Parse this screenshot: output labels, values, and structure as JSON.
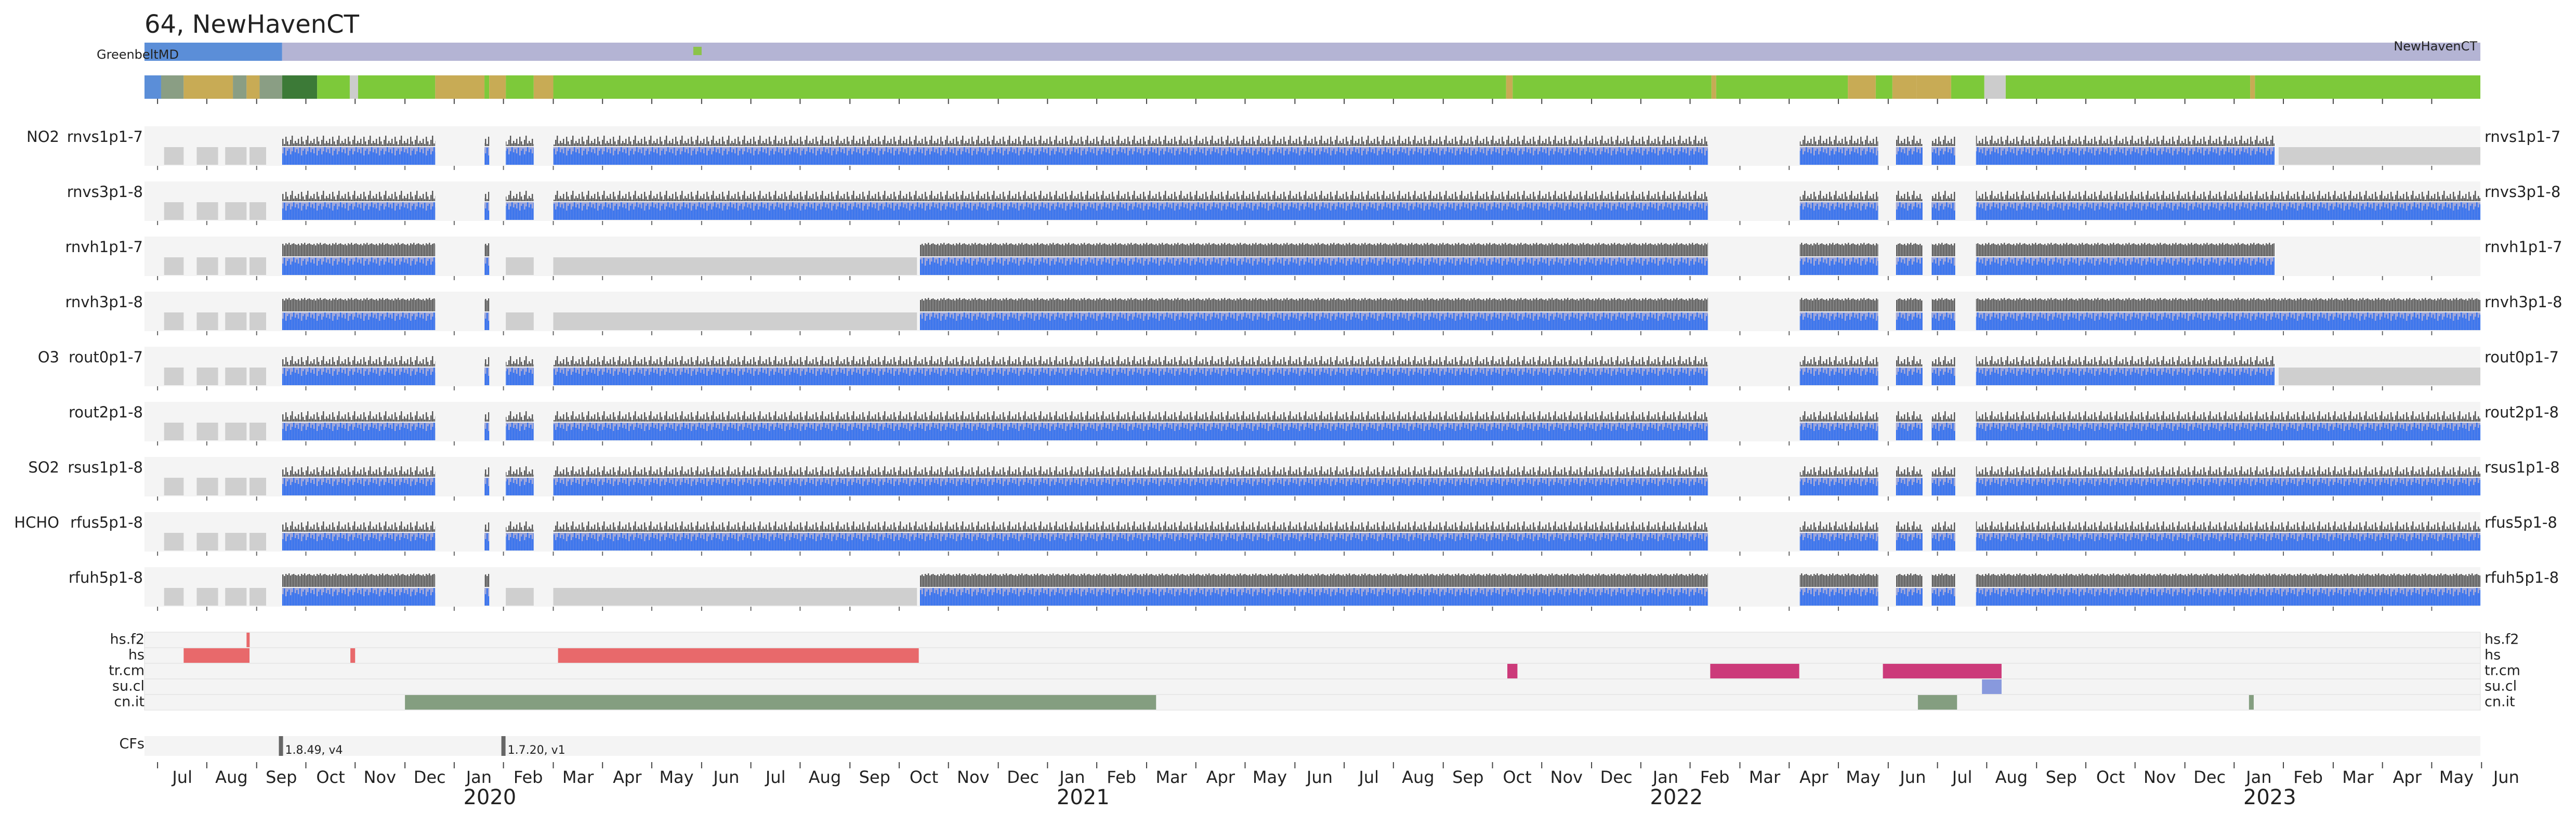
{
  "chart_data": {
    "type": "timeline",
    "title": "64, NewHavenCT",
    "xlim": [
      2019.478,
      2023.415
    ],
    "xticks": [
      {
        "value": 2019.5,
        "label": "Jul"
      },
      {
        "value": 2019.583,
        "label": "Aug"
      },
      {
        "value": 2019.667,
        "label": "Sep"
      },
      {
        "value": 2019.75,
        "label": "Oct"
      },
      {
        "value": 2019.833,
        "label": "Nov"
      },
      {
        "value": 2019.917,
        "label": "Dec"
      },
      {
        "value": 2020.0,
        "label": "Jan"
      },
      {
        "value": 2020.083,
        "label": "Feb"
      },
      {
        "value": 2020.167,
        "label": "Mar"
      },
      {
        "value": 2020.25,
        "label": "Apr"
      },
      {
        "value": 2020.333,
        "label": "May"
      },
      {
        "value": 2020.417,
        "label": "Jun"
      },
      {
        "value": 2020.5,
        "label": "Jul"
      },
      {
        "value": 2020.583,
        "label": "Aug"
      },
      {
        "value": 2020.667,
        "label": "Sep"
      },
      {
        "value": 2020.75,
        "label": "Oct"
      },
      {
        "value": 2020.833,
        "label": "Nov"
      },
      {
        "value": 2020.917,
        "label": "Dec"
      },
      {
        "value": 2021.0,
        "label": "Jan"
      },
      {
        "value": 2021.083,
        "label": "Feb"
      },
      {
        "value": 2021.167,
        "label": "Mar"
      },
      {
        "value": 2021.25,
        "label": "Apr"
      },
      {
        "value": 2021.333,
        "label": "May"
      },
      {
        "value": 2021.417,
        "label": "Jun"
      },
      {
        "value": 2021.5,
        "label": "Jul"
      },
      {
        "value": 2021.583,
        "label": "Aug"
      },
      {
        "value": 2021.667,
        "label": "Sep"
      },
      {
        "value": 2021.75,
        "label": "Oct"
      },
      {
        "value": 2021.833,
        "label": "Nov"
      },
      {
        "value": 2021.917,
        "label": "Dec"
      },
      {
        "value": 2022.0,
        "label": "Jan"
      },
      {
        "value": 2022.083,
        "label": "Feb"
      },
      {
        "value": 2022.167,
        "label": "Mar"
      },
      {
        "value": 2022.25,
        "label": "Apr"
      },
      {
        "value": 2022.333,
        "label": "May"
      },
      {
        "value": 2022.417,
        "label": "Jun"
      },
      {
        "value": 2022.5,
        "label": "Jul"
      },
      {
        "value": 2022.583,
        "label": "Aug"
      },
      {
        "value": 2022.667,
        "label": "Sep"
      },
      {
        "value": 2022.75,
        "label": "Oct"
      },
      {
        "value": 2022.833,
        "label": "Nov"
      },
      {
        "value": 2022.917,
        "label": "Dec"
      },
      {
        "value": 2023.0,
        "label": "Jan"
      },
      {
        "value": 2023.083,
        "label": "Feb"
      },
      {
        "value": 2023.167,
        "label": "Mar"
      },
      {
        "value": 2023.25,
        "label": "Apr"
      },
      {
        "value": 2023.333,
        "label": "May"
      },
      {
        "value": 2023.417,
        "label": "Jun"
      }
    ],
    "year_ticks": [
      2020,
      2021,
      2022,
      2023
    ],
    "locations": [
      {
        "name": "GreenbeltMD",
        "start": 2019.478,
        "end": 2019.71,
        "color": "#5b8ed8"
      },
      {
        "name": "NewHavenCT",
        "start": 2019.71,
        "end": 2023.415,
        "color": "#b4b4d4"
      }
    ],
    "location_marker": {
      "x": 2020.41,
      "color": "#8bc34a"
    },
    "status_band": [
      {
        "start": 2019.478,
        "end": 2019.506,
        "color": "#5b8ed8"
      },
      {
        "start": 2019.506,
        "end": 2019.544,
        "color": "#8a9e84"
      },
      {
        "start": 2019.544,
        "end": 2019.627,
        "color": "#c8ab55"
      },
      {
        "start": 2019.627,
        "end": 2019.65,
        "color": "#8a9e84"
      },
      {
        "start": 2019.65,
        "end": 2019.672,
        "color": "#c8ab55"
      },
      {
        "start": 2019.672,
        "end": 2019.71,
        "color": "#8a9e84"
      },
      {
        "start": 2019.71,
        "end": 2019.769,
        "color": "#3c7a37"
      },
      {
        "start": 2019.769,
        "end": 2019.824,
        "color": "#7dc93a"
      },
      {
        "start": 2019.824,
        "end": 2019.838,
        "color": "#cccccc"
      },
      {
        "start": 2019.838,
        "end": 2019.968,
        "color": "#7dc93a"
      },
      {
        "start": 2019.968,
        "end": 2020.051,
        "color": "#c8ab55"
      },
      {
        "start": 2020.051,
        "end": 2020.059,
        "color": "#7dc93a"
      },
      {
        "start": 2020.059,
        "end": 2020.087,
        "color": "#c8ab55"
      },
      {
        "start": 2020.087,
        "end": 2020.134,
        "color": "#7dc93a"
      },
      {
        "start": 2020.134,
        "end": 2020.167,
        "color": "#c8ab55"
      },
      {
        "start": 2020.167,
        "end": 2021.773,
        "color": "#7dc93a"
      },
      {
        "start": 2021.773,
        "end": 2021.784,
        "color": "#c8ab55"
      },
      {
        "start": 2021.784,
        "end": 2022.119,
        "color": "#7dc93a"
      },
      {
        "start": 2022.119,
        "end": 2022.127,
        "color": "#c8ab55"
      },
      {
        "start": 2022.127,
        "end": 2022.349,
        "color": "#7dc93a"
      },
      {
        "start": 2022.349,
        "end": 2022.396,
        "color": "#c8ab55"
      },
      {
        "start": 2022.396,
        "end": 2022.424,
        "color": "#7dc93a"
      },
      {
        "start": 2022.424,
        "end": 2022.465,
        "color": "#c8ab55"
      },
      {
        "start": 2022.465,
        "end": 2022.523,
        "color": "#c8ab55"
      },
      {
        "start": 2022.523,
        "end": 2022.579,
        "color": "#7dc93a"
      },
      {
        "start": 2022.579,
        "end": 2022.615,
        "color": "#cccccc"
      },
      {
        "start": 2022.615,
        "end": 2023.027,
        "color": "#7dc93a"
      },
      {
        "start": 2023.027,
        "end": 2023.035,
        "color": "#c8ab55"
      },
      {
        "start": 2023.035,
        "end": 2023.415,
        "color": "#7dc93a"
      }
    ],
    "rows": [
      {
        "group": "NO2",
        "name": "rnvs1p1-7",
        "style": "fine",
        "available": [
          [
            2019.71,
            2019.968
          ],
          [
            2020.051,
            2020.059
          ],
          [
            2020.087,
            2020.134
          ],
          [
            2020.167,
            2022.113
          ],
          [
            2022.268,
            2022.4
          ],
          [
            2022.43,
            2022.475
          ],
          [
            2022.49,
            2022.53
          ],
          [
            2022.565,
            2023.068
          ]
        ],
        "missing": [
          [
            2019.511,
            2019.544
          ],
          [
            2019.566,
            2019.602
          ],
          [
            2019.614,
            2019.65
          ],
          [
            2019.655,
            2019.683
          ],
          [
            2023.075,
            2023.415
          ]
        ]
      },
      {
        "name": "rnvs3p1-8",
        "style": "fine",
        "available": [
          [
            2019.71,
            2019.968
          ],
          [
            2020.051,
            2020.059
          ],
          [
            2020.087,
            2020.134
          ],
          [
            2020.167,
            2022.113
          ],
          [
            2022.268,
            2022.4
          ],
          [
            2022.43,
            2022.475
          ],
          [
            2022.49,
            2022.53
          ],
          [
            2022.565,
            2023.415
          ]
        ],
        "missing": [
          [
            2019.511,
            2019.544
          ],
          [
            2019.566,
            2019.602
          ],
          [
            2019.614,
            2019.65
          ],
          [
            2019.655,
            2019.683
          ]
        ]
      },
      {
        "name": "rnvh1p1-7",
        "style": "dense",
        "available": [
          [
            2019.71,
            2019.968
          ],
          [
            2020.051,
            2020.059
          ],
          [
            2020.785,
            2022.113
          ],
          [
            2022.268,
            2022.4
          ],
          [
            2022.43,
            2022.475
          ],
          [
            2022.49,
            2022.53
          ],
          [
            2022.565,
            2023.068
          ]
        ],
        "missing": [
          [
            2019.511,
            2019.544
          ],
          [
            2019.566,
            2019.602
          ],
          [
            2019.614,
            2019.65
          ],
          [
            2019.655,
            2019.683
          ],
          [
            2020.087,
            2020.134
          ],
          [
            2020.167,
            2020.78
          ]
        ]
      },
      {
        "name": "rnvh3p1-8",
        "style": "dense",
        "available": [
          [
            2019.71,
            2019.968
          ],
          [
            2020.051,
            2020.059
          ],
          [
            2020.785,
            2022.113
          ],
          [
            2022.268,
            2022.4
          ],
          [
            2022.43,
            2022.475
          ],
          [
            2022.49,
            2022.53
          ],
          [
            2022.565,
            2023.415
          ]
        ],
        "missing": [
          [
            2019.511,
            2019.544
          ],
          [
            2019.566,
            2019.602
          ],
          [
            2019.614,
            2019.65
          ],
          [
            2019.655,
            2019.683
          ],
          [
            2020.087,
            2020.134
          ],
          [
            2020.167,
            2020.78
          ]
        ]
      },
      {
        "group": "O3",
        "name": "rout0p1-7",
        "style": "fine",
        "available": [
          [
            2019.71,
            2019.968
          ],
          [
            2020.051,
            2020.059
          ],
          [
            2020.087,
            2020.134
          ],
          [
            2020.167,
            2022.113
          ],
          [
            2022.268,
            2022.4
          ],
          [
            2022.43,
            2022.475
          ],
          [
            2022.49,
            2022.53
          ],
          [
            2022.565,
            2023.068
          ]
        ],
        "missing": [
          [
            2019.511,
            2019.544
          ],
          [
            2019.566,
            2019.602
          ],
          [
            2019.614,
            2019.65
          ],
          [
            2019.655,
            2019.683
          ],
          [
            2023.075,
            2023.415
          ]
        ]
      },
      {
        "name": "rout2p1-8",
        "style": "fine",
        "available": [
          [
            2019.71,
            2019.968
          ],
          [
            2020.051,
            2020.059
          ],
          [
            2020.087,
            2020.134
          ],
          [
            2020.167,
            2022.113
          ],
          [
            2022.268,
            2022.4
          ],
          [
            2022.43,
            2022.475
          ],
          [
            2022.49,
            2022.53
          ],
          [
            2022.565,
            2023.415
          ]
        ],
        "missing": [
          [
            2019.511,
            2019.544
          ],
          [
            2019.566,
            2019.602
          ],
          [
            2019.614,
            2019.65
          ],
          [
            2019.655,
            2019.683
          ]
        ]
      },
      {
        "group": "SO2",
        "name": "rsus1p1-8",
        "style": "fine",
        "available": [
          [
            2019.71,
            2019.968
          ],
          [
            2020.051,
            2020.059
          ],
          [
            2020.087,
            2020.134
          ],
          [
            2020.167,
            2022.113
          ],
          [
            2022.268,
            2022.4
          ],
          [
            2022.43,
            2022.475
          ],
          [
            2022.49,
            2022.53
          ],
          [
            2022.565,
            2023.415
          ]
        ],
        "missing": [
          [
            2019.511,
            2019.544
          ],
          [
            2019.566,
            2019.602
          ],
          [
            2019.614,
            2019.65
          ],
          [
            2019.655,
            2019.683
          ]
        ]
      },
      {
        "group": "HCHO",
        "name": "rfus5p1-8",
        "style": "fine",
        "available": [
          [
            2019.71,
            2019.968
          ],
          [
            2020.051,
            2020.059
          ],
          [
            2020.087,
            2020.134
          ],
          [
            2020.167,
            2022.113
          ],
          [
            2022.268,
            2022.4
          ],
          [
            2022.43,
            2022.475
          ],
          [
            2022.49,
            2022.53
          ],
          [
            2022.565,
            2023.415
          ]
        ],
        "missing": [
          [
            2019.511,
            2019.544
          ],
          [
            2019.566,
            2019.602
          ],
          [
            2019.614,
            2019.65
          ],
          [
            2019.655,
            2019.683
          ]
        ]
      },
      {
        "name": "rfuh5p1-8",
        "style": "dense",
        "available": [
          [
            2019.71,
            2019.968
          ],
          [
            2020.051,
            2020.059
          ],
          [
            2020.785,
            2022.113
          ],
          [
            2022.268,
            2022.4
          ],
          [
            2022.43,
            2022.475
          ],
          [
            2022.49,
            2022.53
          ],
          [
            2022.565,
            2023.415
          ]
        ],
        "missing": [
          [
            2019.511,
            2019.544
          ],
          [
            2019.566,
            2019.602
          ],
          [
            2019.614,
            2019.65
          ],
          [
            2019.655,
            2019.683
          ],
          [
            2020.087,
            2020.134
          ],
          [
            2020.167,
            2020.78
          ]
        ]
      }
    ],
    "flags": [
      {
        "name": "hs.f2",
        "color": "#e8696b",
        "spans": [
          [
            2019.65,
            2019.655
          ]
        ]
      },
      {
        "name": "hs",
        "color": "#e8696b",
        "spans": [
          [
            2019.544,
            2019.655
          ],
          [
            2019.825,
            2019.833
          ],
          [
            2020.175,
            2020.783
          ]
        ]
      },
      {
        "name": "tr.cm",
        "color": "#cc3a7a",
        "spans": [
          [
            2021.775,
            2021.792
          ],
          [
            2022.117,
            2022.267
          ],
          [
            2022.408,
            2022.608
          ]
        ]
      },
      {
        "name": "su.cl",
        "color": "#8899dd",
        "spans": [
          [
            2022.575,
            2022.608
          ]
        ]
      },
      {
        "name": "cn.it",
        "color": "#849e80",
        "spans": [
          [
            2019.917,
            2021.183
          ],
          [
            2022.467,
            2022.533
          ],
          [
            2023.025,
            2023.033
          ]
        ]
      }
    ],
    "cfs": {
      "name": "CFs",
      "color": "#666666",
      "markers": [
        {
          "x": 2019.708,
          "label": "1.8.49, v4"
        },
        {
          "x": 2020.083,
          "label": "1.7.20, v1"
        }
      ]
    }
  }
}
